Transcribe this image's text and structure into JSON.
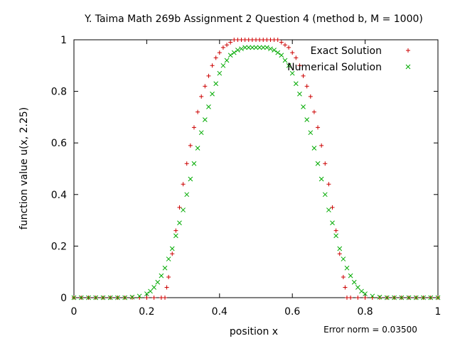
{
  "chart_data": {
    "type": "scatter",
    "title": "Y. Taima Math 269b Assignment 2 Question 4 (method b, M = 1000)",
    "xlabel": "position x",
    "ylabel": "function value u(x, 2.25)",
    "xlim": [
      0,
      1
    ],
    "ylim": [
      0,
      1
    ],
    "x_ticks": [
      "0",
      "0.2",
      "0.4",
      "0.6",
      "0.8",
      "1"
    ],
    "y_ticks": [
      "0",
      "0.2",
      "0.4",
      "0.6",
      "0.8",
      "1"
    ],
    "grid": false,
    "legend_position": "top-right",
    "note": "Error norm = 0.03500",
    "series": [
      {
        "name": "Exact Solution",
        "marker": "plus",
        "color": "#cc0000",
        "x": [
          0,
          0.02,
          0.04,
          0.06,
          0.08,
          0.1,
          0.12,
          0.14,
          0.16,
          0.18,
          0.2,
          0.22,
          0.24,
          0.25,
          0.255,
          0.26,
          0.27,
          0.28,
          0.29,
          0.3,
          0.31,
          0.32,
          0.33,
          0.34,
          0.35,
          0.36,
          0.37,
          0.38,
          0.39,
          0.4,
          0.41,
          0.42,
          0.43,
          0.44,
          0.45,
          0.46,
          0.47,
          0.48,
          0.49,
          0.5,
          0.51,
          0.52,
          0.53,
          0.54,
          0.55,
          0.56,
          0.57,
          0.58,
          0.59,
          0.6,
          0.61,
          0.62,
          0.63,
          0.64,
          0.65,
          0.66,
          0.67,
          0.68,
          0.69,
          0.7,
          0.71,
          0.72,
          0.73,
          0.74,
          0.745,
          0.75,
          0.76,
          0.78,
          0.8,
          0.82,
          0.84,
          0.86,
          0.88,
          0.9,
          0.92,
          0.94,
          0.96,
          0.98,
          1
        ],
        "y": [
          0,
          0,
          0,
          0,
          0,
          0,
          0,
          0,
          0,
          0,
          0,
          0,
          0,
          0,
          0.04,
          0.08,
          0.17,
          0.26,
          0.35,
          0.44,
          0.52,
          0.59,
          0.66,
          0.72,
          0.78,
          0.82,
          0.86,
          0.9,
          0.93,
          0.95,
          0.97,
          0.98,
          0.99,
          1.0,
          1.0,
          1.0,
          1.0,
          1.0,
          1.0,
          1.0,
          1.0,
          1.0,
          1.0,
          1.0,
          1.0,
          1.0,
          0.99,
          0.98,
          0.97,
          0.95,
          0.93,
          0.9,
          0.86,
          0.82,
          0.78,
          0.72,
          0.66,
          0.59,
          0.52,
          0.44,
          0.35,
          0.26,
          0.17,
          0.08,
          0.04,
          0,
          0,
          0,
          0,
          0,
          0,
          0,
          0,
          0,
          0,
          0,
          0,
          0,
          0
        ]
      },
      {
        "name": "Numerical Solution",
        "marker": "cross",
        "color": "#00aa00",
        "x": [
          0,
          0.02,
          0.04,
          0.06,
          0.08,
          0.1,
          0.12,
          0.14,
          0.16,
          0.18,
          0.2,
          0.21,
          0.22,
          0.23,
          0.24,
          0.25,
          0.26,
          0.27,
          0.28,
          0.29,
          0.3,
          0.31,
          0.32,
          0.33,
          0.34,
          0.35,
          0.36,
          0.37,
          0.38,
          0.39,
          0.4,
          0.41,
          0.42,
          0.43,
          0.44,
          0.45,
          0.46,
          0.47,
          0.48,
          0.49,
          0.5,
          0.51,
          0.52,
          0.53,
          0.54,
          0.55,
          0.56,
          0.57,
          0.58,
          0.59,
          0.6,
          0.61,
          0.62,
          0.63,
          0.64,
          0.65,
          0.66,
          0.67,
          0.68,
          0.69,
          0.7,
          0.71,
          0.72,
          0.73,
          0.74,
          0.75,
          0.76,
          0.77,
          0.78,
          0.79,
          0.8,
          0.82,
          0.84,
          0.86,
          0.88,
          0.9,
          0.92,
          0.94,
          0.96,
          0.98,
          1
        ],
        "y": [
          0,
          0,
          0,
          0,
          0,
          0,
          0,
          0,
          0.002,
          0.006,
          0.015,
          0.025,
          0.04,
          0.06,
          0.085,
          0.115,
          0.15,
          0.19,
          0.24,
          0.29,
          0.34,
          0.4,
          0.46,
          0.52,
          0.58,
          0.64,
          0.69,
          0.74,
          0.79,
          0.83,
          0.87,
          0.9,
          0.92,
          0.94,
          0.95,
          0.96,
          0.965,
          0.97,
          0.97,
          0.97,
          0.97,
          0.97,
          0.97,
          0.97,
          0.965,
          0.96,
          0.95,
          0.94,
          0.92,
          0.9,
          0.87,
          0.83,
          0.79,
          0.74,
          0.69,
          0.64,
          0.58,
          0.52,
          0.46,
          0.4,
          0.34,
          0.29,
          0.24,
          0.19,
          0.15,
          0.115,
          0.085,
          0.06,
          0.04,
          0.025,
          0.015,
          0.006,
          0.002,
          0,
          0,
          0,
          0,
          0,
          0,
          0,
          0
        ]
      }
    ]
  }
}
